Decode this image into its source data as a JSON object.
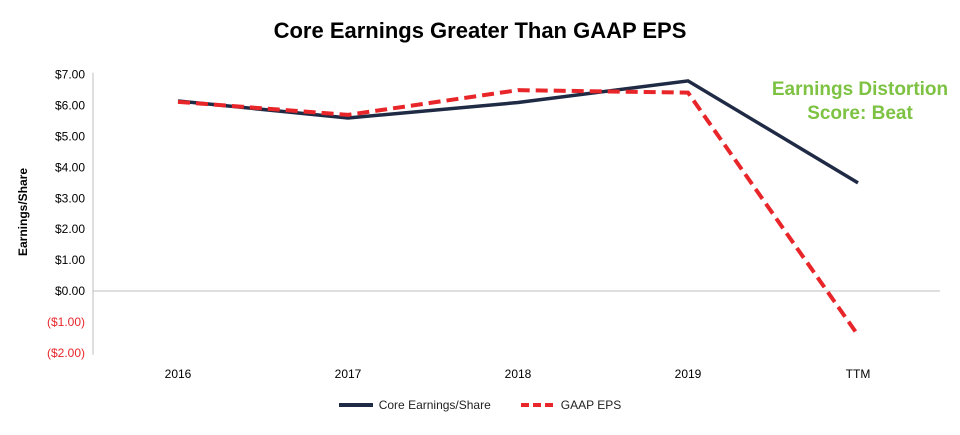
{
  "chart_data": {
    "type": "line",
    "title": "Core Earnings Greater Than GAAP EPS",
    "xlabel": "",
    "ylabel": "Earnings/Share",
    "categories": [
      "2016",
      "2017",
      "2018",
      "2019",
      "TTM"
    ],
    "ylim": [
      -2,
      7
    ],
    "yticks": [
      7,
      6,
      5,
      4,
      3,
      2,
      1,
      0,
      -1,
      -2
    ],
    "ytick_labels": [
      "$7.00",
      "$6.00",
      "$5.00",
      "$4.00",
      "$3.00",
      "$2.00",
      "$1.00",
      "$0.00",
      "($1.00)",
      "($2.00)"
    ],
    "grid": false,
    "legend": "bottom",
    "annotation": [
      "Earnings Distortion",
      "Score: Beat"
    ],
    "series": [
      {
        "name": "Core Earnings/Share",
        "values": [
          6.15,
          5.6,
          6.1,
          6.8,
          3.5
        ],
        "color": "#1f2a44",
        "style": "solid"
      },
      {
        "name": "GAAP EPS",
        "values": [
          6.12,
          5.7,
          6.5,
          6.42,
          -1.43
        ],
        "color": "#e8262a",
        "style": "dashed"
      }
    ],
    "colors": {
      "negative_tick": "#e8262a",
      "annotation": "#7dc242"
    }
  }
}
